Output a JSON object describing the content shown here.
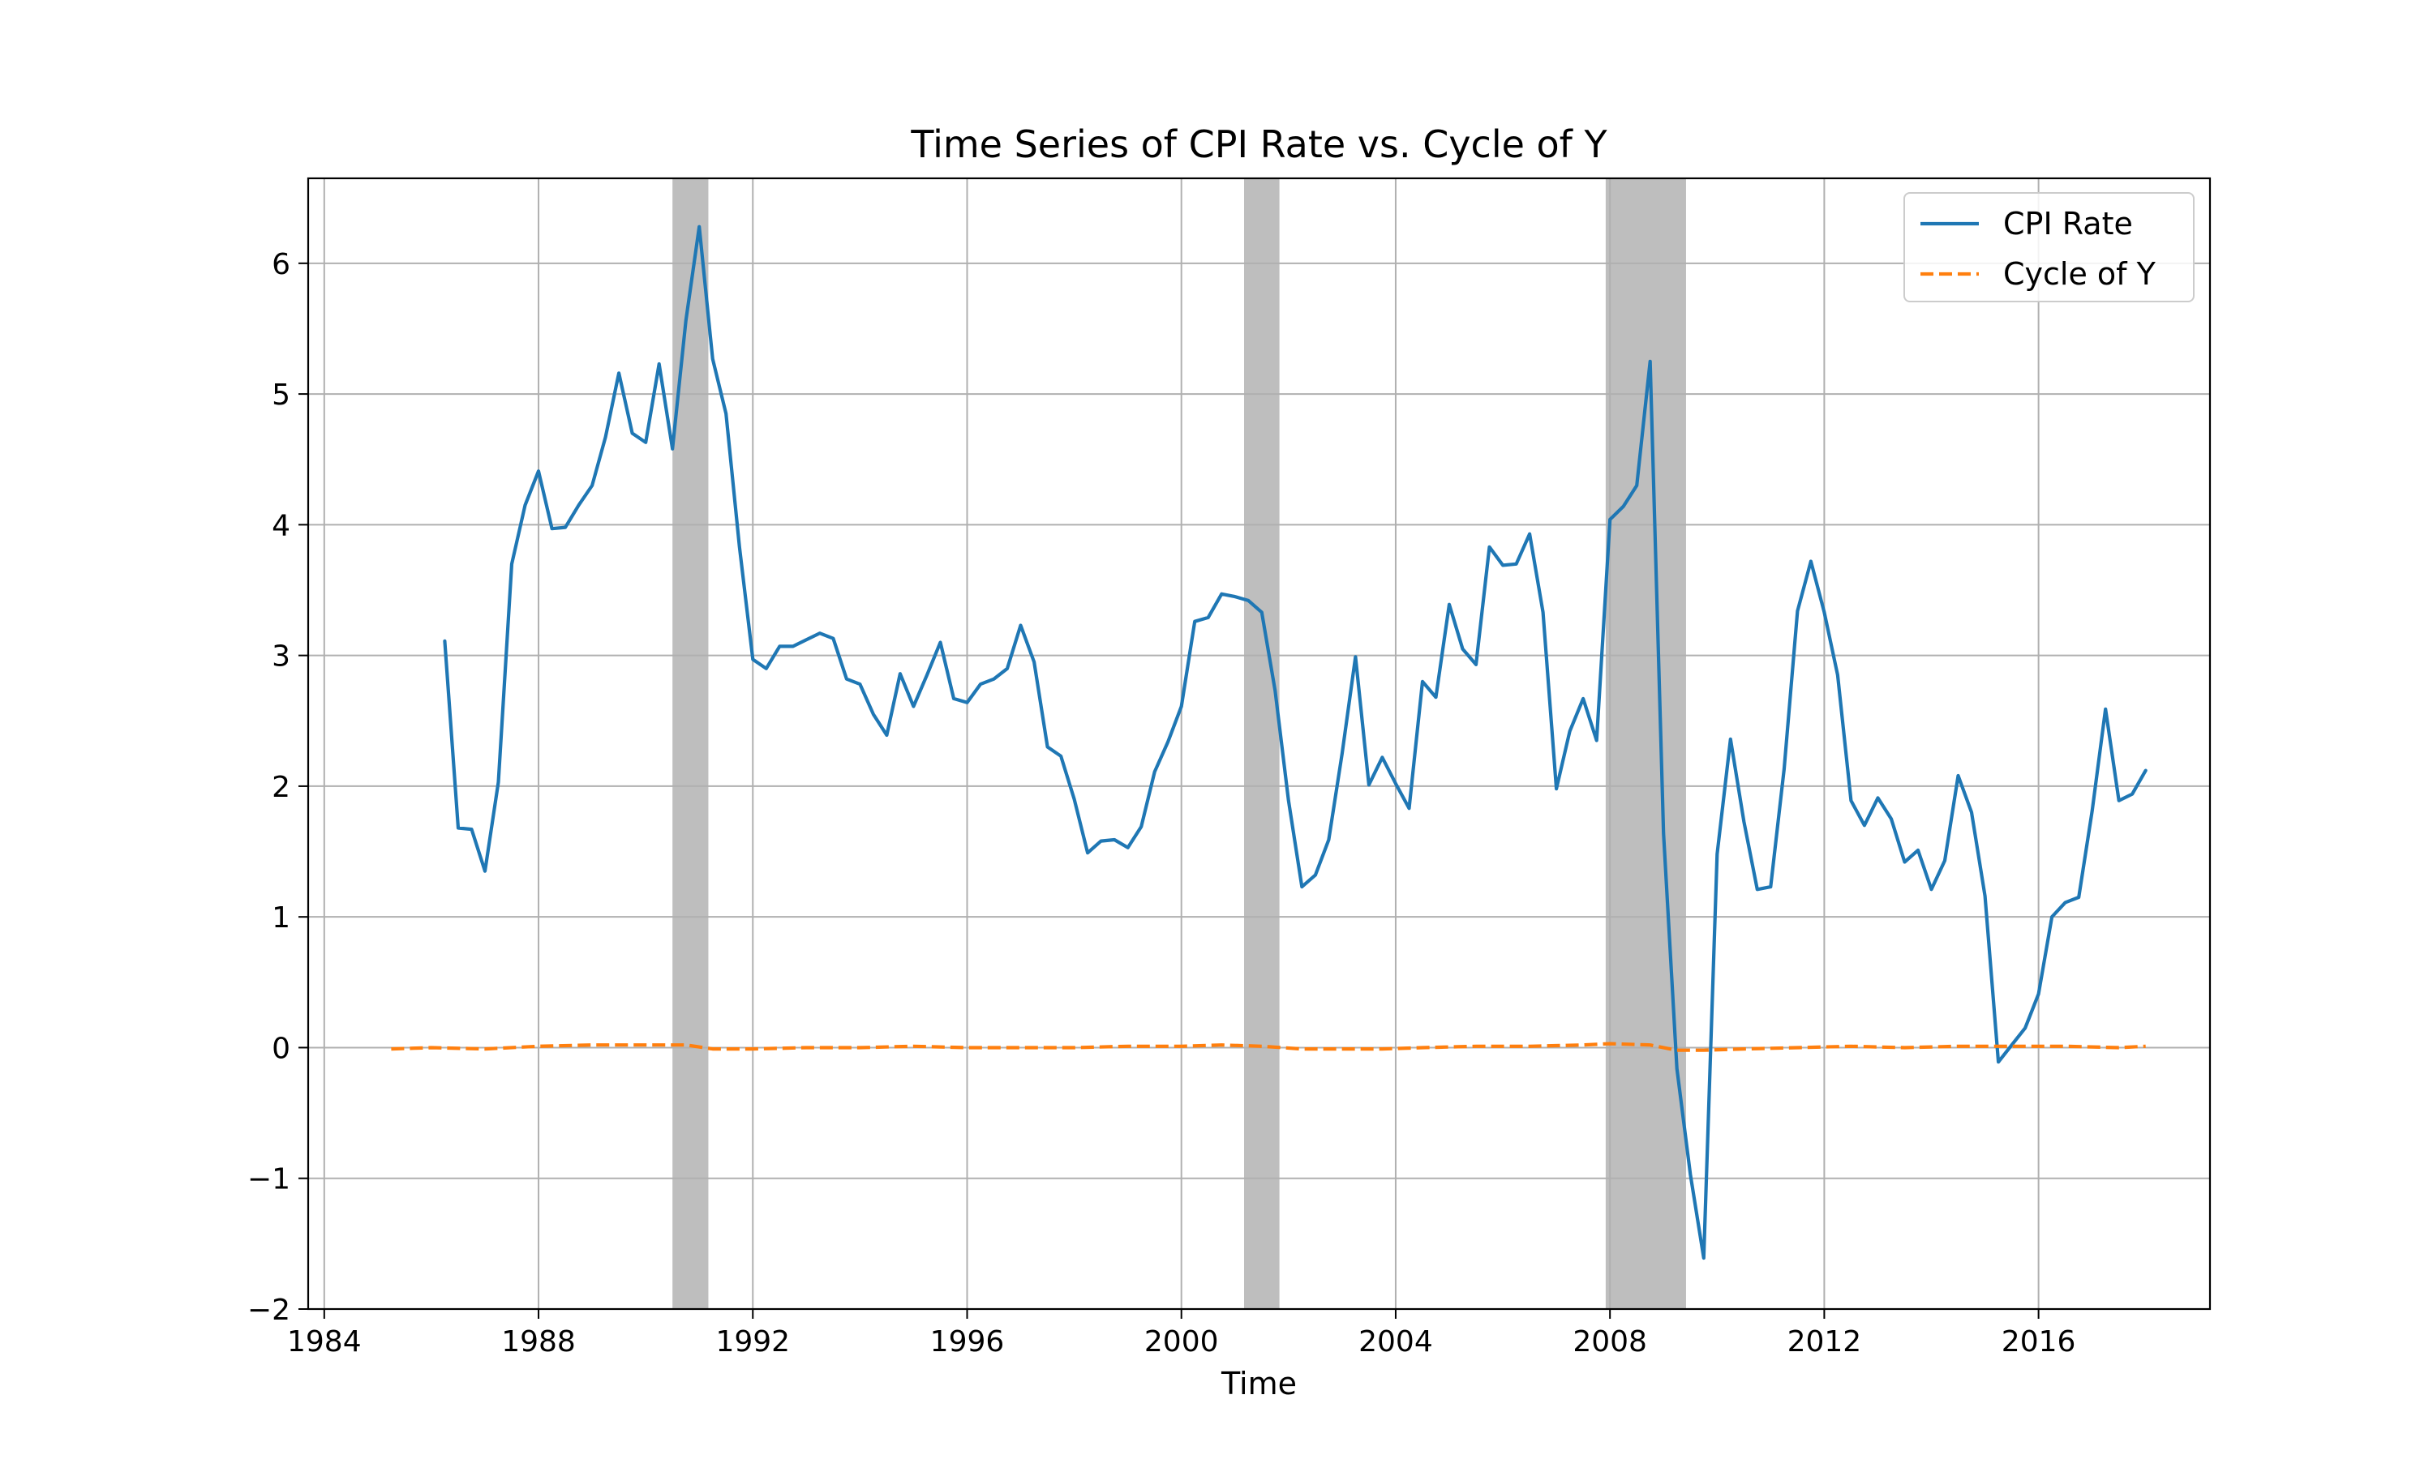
{
  "chart_data": {
    "type": "line",
    "title": "Time Series of CPI Rate vs. Cycle of Y",
    "xlabel": "Time",
    "ylabel": "",
    "xlim": [
      1983.7,
      2019.2
    ],
    "ylim": [
      -2,
      6.65
    ],
    "x_ticks": [
      1984,
      1988,
      1992,
      1996,
      2000,
      2004,
      2008,
      2012,
      2016
    ],
    "y_ticks": [
      -2,
      -1,
      0,
      1,
      2,
      3,
      4,
      5,
      6
    ],
    "y_tick_labels": [
      "−2",
      "−1",
      "0",
      "1",
      "2",
      "3",
      "4",
      "5",
      "6"
    ],
    "grid": true,
    "legend_position": "top-right",
    "shaded_regions": [
      [
        1990.5,
        1991.17
      ],
      [
        2001.17,
        2001.83
      ],
      [
        2007.92,
        2009.42
      ]
    ],
    "shade_color": "#bebebe",
    "series": [
      {
        "name": "CPI Rate",
        "color": "#1f77b4",
        "style": "solid",
        "x": [
          1986.25,
          1986.5,
          1986.75,
          1987.0,
          1987.25,
          1987.5,
          1987.75,
          1988.0,
          1988.25,
          1988.5,
          1988.75,
          1989.0,
          1989.25,
          1989.5,
          1989.75,
          1990.0,
          1990.25,
          1990.5,
          1990.75,
          1991.0,
          1991.25,
          1991.5,
          1991.75,
          1992.0,
          1992.25,
          1992.5,
          1992.75,
          1993.0,
          1993.25,
          1993.5,
          1993.75,
          1994.0,
          1994.25,
          1994.5,
          1994.75,
          1995.0,
          1995.25,
          1995.5,
          1995.75,
          1996.0,
          1996.25,
          1996.5,
          1996.75,
          1997.0,
          1997.25,
          1997.5,
          1997.75,
          1998.0,
          1998.25,
          1998.5,
          1998.75,
          1999.0,
          1999.25,
          1999.5,
          1999.75,
          2000.0,
          2000.25,
          2000.5,
          2000.75,
          2001.0,
          2001.25,
          2001.5,
          2001.75,
          2002.0,
          2002.25,
          2002.5,
          2002.75,
          2003.0,
          2003.25,
          2003.5,
          2003.75,
          2004.0,
          2004.25,
          2004.5,
          2004.75,
          2005.0,
          2005.25,
          2005.5,
          2005.75,
          2006.0,
          2006.25,
          2006.5,
          2006.75,
          2007.0,
          2007.25,
          2007.5,
          2007.75,
          2008.0,
          2008.25,
          2008.5,
          2008.75,
          2009.0,
          2009.25,
          2009.5,
          2009.75,
          2010.0,
          2010.25,
          2010.5,
          2010.75,
          2011.0,
          2011.25,
          2011.5,
          2011.75,
          2012.0,
          2012.25,
          2012.5,
          2012.75,
          2013.0,
          2013.25,
          2013.5,
          2013.75,
          2014.0,
          2014.25,
          2014.5,
          2014.75,
          2015.0,
          2015.25,
          2015.5,
          2015.75,
          2016.0,
          2016.25,
          2016.5,
          2016.75,
          2017.0,
          2017.25,
          2017.5,
          2017.75,
          2018.0
        ],
        "values": [
          3.11,
          1.68,
          1.67,
          1.35,
          2.03,
          3.7,
          4.15,
          4.41,
          3.97,
          3.98,
          4.15,
          4.3,
          4.67,
          5.16,
          4.7,
          4.63,
          5.23,
          4.58,
          5.56,
          6.28,
          5.27,
          4.85,
          3.83,
          2.97,
          2.9,
          3.07,
          3.07,
          3.12,
          3.17,
          3.13,
          2.82,
          2.78,
          2.55,
          2.39,
          2.86,
          2.61,
          2.85,
          3.1,
          2.67,
          2.64,
          2.78,
          2.82,
          2.9,
          3.23,
          2.95,
          2.3,
          2.23,
          1.9,
          1.49,
          1.58,
          1.59,
          1.53,
          1.69,
          2.11,
          2.34,
          2.61,
          3.26,
          3.29,
          3.47,
          3.45,
          3.42,
          3.33,
          2.73,
          1.89,
          1.23,
          1.32,
          1.59,
          2.25,
          2.99,
          2.01,
          2.22,
          2.02,
          1.83,
          2.8,
          2.68,
          3.39,
          3.05,
          2.93,
          3.83,
          3.69,
          3.7,
          3.93,
          3.33,
          1.98,
          2.42,
          2.67,
          2.35,
          4.04,
          4.14,
          4.3,
          5.25,
          1.64,
          -0.16,
          -0.97,
          -1.61,
          1.48,
          2.36,
          1.73,
          1.21,
          1.23,
          2.13,
          3.34,
          3.72,
          3.33,
          2.85,
          1.89,
          1.7,
          1.91,
          1.75,
          1.42,
          1.51,
          1.21,
          1.43,
          2.08,
          1.8,
          1.16,
          -0.11,
          0.02,
          0.15,
          0.41,
          1.0,
          1.11,
          1.15,
          1.81,
          2.59,
          1.89,
          1.94,
          2.12
        ]
      },
      {
        "name": "Cycle of Y",
        "color": "#ff7f0e",
        "style": "dashed",
        "x": [
          1985.25,
          1986.0,
          1987.0,
          1988.0,
          1989.0,
          1990.0,
          1990.75,
          1991.25,
          1992.0,
          1993.0,
          1994.0,
          1995.0,
          1996.0,
          1997.0,
          1998.0,
          1999.0,
          2000.0,
          2000.75,
          2001.5,
          2002.25,
          2003.0,
          2003.75,
          2004.5,
          2005.5,
          2006.5,
          2007.5,
          2008.0,
          2008.75,
          2009.25,
          2009.75,
          2010.5,
          2011.5,
          2012.5,
          2013.5,
          2014.5,
          2015.5,
          2016.5,
          2017.5,
          2018.0
        ],
        "values": [
          -0.01,
          0.0,
          -0.01,
          0.01,
          0.02,
          0.02,
          0.02,
          -0.01,
          -0.01,
          0.0,
          0.0,
          0.01,
          0.0,
          0.0,
          0.0,
          0.01,
          0.01,
          0.02,
          0.01,
          -0.01,
          -0.01,
          -0.01,
          0.0,
          0.01,
          0.01,
          0.02,
          0.03,
          0.02,
          -0.02,
          -0.02,
          -0.01,
          0.0,
          0.01,
          0.0,
          0.01,
          0.01,
          0.01,
          0.0,
          0.01
        ]
      }
    ]
  }
}
